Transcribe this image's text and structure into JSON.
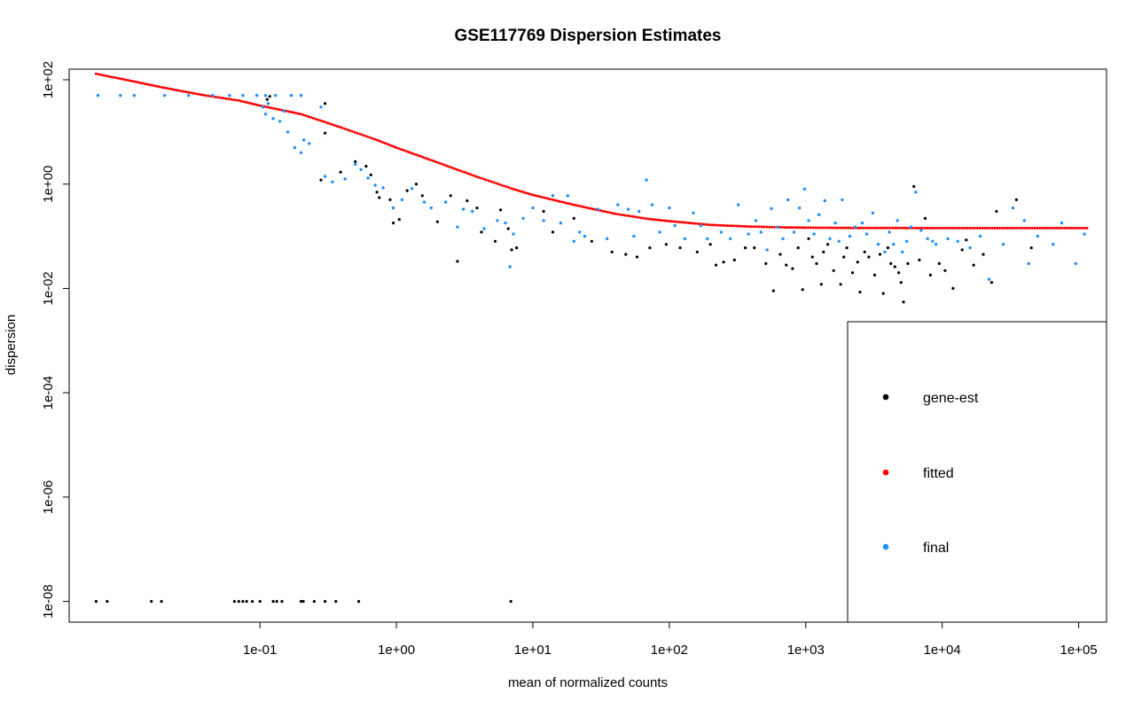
{
  "chart_data": {
    "type": "scatter",
    "title": "GSE117769 Dispersion Estimates",
    "xlabel": "mean of normalized counts",
    "ylabel": "dispersion",
    "x_scale": "log10",
    "y_scale": "log10",
    "xlim": [
      0.004,
      160000
    ],
    "ylim": [
      4e-09,
      160
    ],
    "x_ticks": [
      0.1,
      1,
      10,
      100,
      1000,
      10000,
      100000
    ],
    "x_tick_labels": [
      "1e-01",
      "1e+00",
      "1e+01",
      "1e+02",
      "1e+03",
      "1e+04",
      "1e+05"
    ],
    "y_ticks": [
      1e-08,
      1e-06,
      0.0001,
      0.01,
      1,
      100
    ],
    "y_tick_labels": [
      "1e-08",
      "1e-06",
      "1e-04",
      "1e-02",
      "1e+00",
      "1e+02"
    ],
    "legend_position": "bottom-right",
    "series": [
      {
        "name": "gene-est",
        "color": "#000000",
        "points": [
          [
            0.0063,
            1e-08
          ],
          [
            0.0076,
            1e-08
          ],
          [
            0.016,
            1e-08
          ],
          [
            0.019,
            1e-08
          ],
          [
            0.065,
            1e-08
          ],
          [
            0.07,
            1e-08
          ],
          [
            0.075,
            1e-08
          ],
          [
            0.08,
            1e-08
          ],
          [
            0.088,
            1e-08
          ],
          [
            0.1,
            1e-08
          ],
          [
            0.125,
            1e-08
          ],
          [
            0.133,
            1e-08
          ],
          [
            0.145,
            1e-08
          ],
          [
            0.2,
            1e-08
          ],
          [
            0.208,
            1e-08
          ],
          [
            0.25,
            1e-08
          ],
          [
            0.3,
            1e-08
          ],
          [
            0.36,
            1e-08
          ],
          [
            0.53,
            1e-08
          ],
          [
            6.9,
            1e-08
          ],
          [
            0.113,
            42
          ],
          [
            0.118,
            48
          ],
          [
            0.3,
            35
          ],
          [
            0.28,
            1.2
          ],
          [
            0.3,
            9.5
          ],
          [
            0.39,
            1.7
          ],
          [
            0.5,
            2.7
          ],
          [
            0.6,
            2.2
          ],
          [
            0.65,
            1.5
          ],
          [
            0.72,
            0.7
          ],
          [
            0.75,
            0.55
          ],
          [
            0.9,
            0.5
          ],
          [
            0.95,
            0.18
          ],
          [
            1.05,
            0.21
          ],
          [
            1.2,
            0.75
          ],
          [
            1.4,
            1.0
          ],
          [
            1.55,
            0.6
          ],
          [
            2.0,
            0.19
          ],
          [
            2.5,
            0.6
          ],
          [
            2.8,
            0.033
          ],
          [
            3.3,
            0.48
          ],
          [
            3.9,
            0.35
          ],
          [
            4.2,
            0.12
          ],
          [
            5.3,
            0.08
          ],
          [
            5.8,
            0.32
          ],
          [
            6.6,
            0.14
          ],
          [
            7.0,
            0.055
          ],
          [
            7.6,
            0.06
          ],
          [
            12,
            0.3
          ],
          [
            14,
            0.12
          ],
          [
            20,
            0.22
          ],
          [
            27,
            0.08
          ],
          [
            38,
            0.05
          ],
          [
            48,
            0.045
          ],
          [
            58,
            0.04
          ],
          [
            72,
            0.06
          ],
          [
            95,
            0.07
          ],
          [
            120,
            0.06
          ],
          [
            160,
            0.05
          ],
          [
            200,
            0.07
          ],
          [
            220,
            0.028
          ],
          [
            250,
            0.032
          ],
          [
            300,
            0.035
          ],
          [
            360,
            0.06
          ],
          [
            420,
            0.06
          ],
          [
            510,
            0.03
          ],
          [
            580,
            0.009
          ],
          [
            650,
            0.045
          ],
          [
            720,
            0.028
          ],
          [
            800,
            0.024
          ],
          [
            880,
            0.06
          ],
          [
            950,
            0.0095
          ],
          [
            1050,
            0.09
          ],
          [
            1120,
            0.04
          ],
          [
            1200,
            0.03
          ],
          [
            1300,
            0.012
          ],
          [
            1350,
            0.05
          ],
          [
            1450,
            0.07
          ],
          [
            1600,
            0.022
          ],
          [
            1800,
            0.012
          ],
          [
            1900,
            0.04
          ],
          [
            2000,
            0.06
          ],
          [
            2200,
            0.02
          ],
          [
            2400,
            0.032
          ],
          [
            2500,
            0.0085
          ],
          [
            2700,
            0.05
          ],
          [
            2900,
            0.04
          ],
          [
            3200,
            0.018
          ],
          [
            3500,
            0.045
          ],
          [
            3700,
            0.008
          ],
          [
            4000,
            0.06
          ],
          [
            4200,
            0.03
          ],
          [
            4500,
            0.026
          ],
          [
            4800,
            0.02
          ],
          [
            5000,
            0.013
          ],
          [
            5200,
            0.0055
          ],
          [
            5600,
            0.03
          ],
          [
            6200,
            0.9
          ],
          [
            6800,
            0.035
          ],
          [
            7500,
            0.22
          ],
          [
            8200,
            0.018
          ],
          [
            9500,
            0.03
          ],
          [
            10500,
            0.022
          ],
          [
            12000,
            0.01
          ],
          [
            14000,
            0.055
          ],
          [
            15000,
            0.085
          ],
          [
            17000,
            0.028
          ],
          [
            20000,
            0.045
          ],
          [
            23000,
            0.013
          ],
          [
            25000,
            0.3
          ],
          [
            35000,
            0.5
          ],
          [
            45000,
            0.06
          ]
        ]
      },
      {
        "name": "fitted",
        "color": "#ff0000",
        "line": [
          [
            0.0063,
            130
          ],
          [
            0.01,
            102
          ],
          [
            0.02,
            70
          ],
          [
            0.04,
            50
          ],
          [
            0.07,
            40
          ],
          [
            0.1,
            32
          ],
          [
            0.2,
            22
          ],
          [
            0.4,
            12
          ],
          [
            0.7,
            7.2
          ],
          [
            1,
            5
          ],
          [
            2,
            2.6
          ],
          [
            4,
            1.35
          ],
          [
            7,
            0.82
          ],
          [
            10,
            0.62
          ],
          [
            20,
            0.4
          ],
          [
            40,
            0.27
          ],
          [
            70,
            0.215
          ],
          [
            100,
            0.195
          ],
          [
            200,
            0.165
          ],
          [
            400,
            0.153
          ],
          [
            700,
            0.148
          ],
          [
            1000,
            0.146
          ],
          [
            3000,
            0.144
          ],
          [
            10000,
            0.143
          ],
          [
            30000,
            0.143
          ],
          [
            120000,
            0.143
          ]
        ]
      },
      {
        "name": "final",
        "color": "#1e90ff",
        "points": [
          [
            0.0065,
            50
          ],
          [
            0.0095,
            50
          ],
          [
            0.012,
            50
          ],
          [
            0.02,
            50
          ],
          [
            0.03,
            50
          ],
          [
            0.045,
            50
          ],
          [
            0.06,
            50
          ],
          [
            0.075,
            50
          ],
          [
            0.095,
            50
          ],
          [
            0.11,
            50
          ],
          [
            0.13,
            50
          ],
          [
            0.17,
            50
          ],
          [
            0.2,
            50
          ],
          [
            0.28,
            30
          ],
          [
            0.105,
            30
          ],
          [
            0.115,
            35
          ],
          [
            0.11,
            22
          ],
          [
            0.125,
            18
          ],
          [
            0.14,
            16
          ],
          [
            0.15,
            25
          ],
          [
            0.16,
            10
          ],
          [
            0.18,
            5
          ],
          [
            0.2,
            4
          ],
          [
            0.21,
            7
          ],
          [
            0.23,
            6
          ],
          [
            0.3,
            1.4
          ],
          [
            0.34,
            1.1
          ],
          [
            0.42,
            1.25
          ],
          [
            0.5,
            2.4
          ],
          [
            0.55,
            1.9
          ],
          [
            0.62,
            1.3
          ],
          [
            0.7,
            0.95
          ],
          [
            0.8,
            0.85
          ],
          [
            0.95,
            0.35
          ],
          [
            1.1,
            0.5
          ],
          [
            1.3,
            0.82
          ],
          [
            1.6,
            0.45
          ],
          [
            1.8,
            0.35
          ],
          [
            2.3,
            0.45
          ],
          [
            2.8,
            0.15
          ],
          [
            3.1,
            0.33
          ],
          [
            3.6,
            0.3
          ],
          [
            4.4,
            0.14
          ],
          [
            5.5,
            0.2
          ],
          [
            6.3,
            0.18
          ],
          [
            6.8,
            0.026
          ],
          [
            7.2,
            0.11
          ],
          [
            8.5,
            0.22
          ],
          [
            10,
            0.35
          ],
          [
            12,
            0.2
          ],
          [
            14,
            0.6
          ],
          [
            16,
            0.18
          ],
          [
            18,
            0.6
          ],
          [
            20,
            0.08
          ],
          [
            22,
            0.12
          ],
          [
            24,
            0.1
          ],
          [
            30,
            0.33
          ],
          [
            35,
            0.09
          ],
          [
            42,
            0.4
          ],
          [
            50,
            0.33
          ],
          [
            55,
            0.1
          ],
          [
            60,
            0.3
          ],
          [
            68,
            1.2
          ],
          [
            75,
            0.4
          ],
          [
            85,
            0.12
          ],
          [
            100,
            0.35
          ],
          [
            110,
            0.16
          ],
          [
            130,
            0.09
          ],
          [
            150,
            0.28
          ],
          [
            170,
            0.16
          ],
          [
            190,
            0.09
          ],
          [
            240,
            0.12
          ],
          [
            280,
            0.09
          ],
          [
            320,
            0.4
          ],
          [
            380,
            0.11
          ],
          [
            430,
            0.2
          ],
          [
            470,
            0.12
          ],
          [
            520,
            0.055
          ],
          [
            560,
            0.34
          ],
          [
            620,
            0.15
          ],
          [
            680,
            0.09
          ],
          [
            740,
            0.5
          ],
          [
            820,
            0.12
          ],
          [
            900,
            0.35
          ],
          [
            980,
            0.8
          ],
          [
            1050,
            0.2
          ],
          [
            1150,
            0.11
          ],
          [
            1250,
            0.26
          ],
          [
            1380,
            0.48
          ],
          [
            1500,
            0.09
          ],
          [
            1650,
            0.18
          ],
          [
            1750,
            0.08
          ],
          [
            1850,
            0.5
          ],
          [
            2100,
            0.1
          ],
          [
            2300,
            0.15
          ],
          [
            2600,
            0.18
          ],
          [
            2800,
            0.11
          ],
          [
            3100,
            0.28
          ],
          [
            3400,
            0.07
          ],
          [
            3800,
            0.05
          ],
          [
            4100,
            0.12
          ],
          [
            4400,
            0.07
          ],
          [
            4700,
            0.2
          ],
          [
            5100,
            0.05
          ],
          [
            5500,
            0.08
          ],
          [
            5900,
            0.15
          ],
          [
            6400,
            0.7
          ],
          [
            7000,
            0.13
          ],
          [
            7800,
            0.09
          ],
          [
            8500,
            0.08
          ],
          [
            9000,
            0.07
          ],
          [
            11000,
            0.09
          ],
          [
            13000,
            0.08
          ],
          [
            16000,
            0.06
          ],
          [
            19000,
            0.1
          ],
          [
            22000,
            0.015
          ],
          [
            28000,
            0.07
          ],
          [
            33000,
            0.35
          ],
          [
            40000,
            0.2
          ],
          [
            43000,
            0.03
          ],
          [
            50000,
            0.1
          ],
          [
            65000,
            0.07
          ],
          [
            75000,
            0.18
          ],
          [
            95000,
            0.03
          ],
          [
            110000,
            0.11
          ]
        ]
      }
    ]
  }
}
